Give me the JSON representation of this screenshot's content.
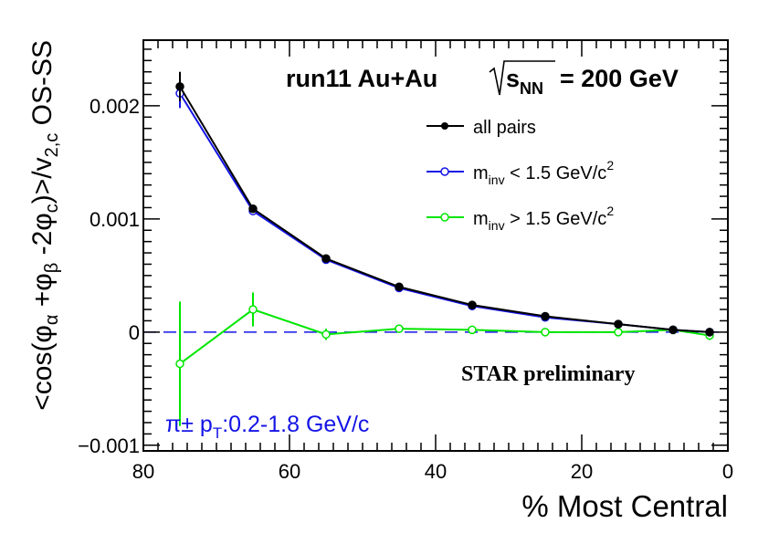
{
  "chart_data": {
    "type": "line",
    "title": "",
    "header": {
      "run": "run11 Au+Au",
      "sqrt": "s",
      "sqrt_sub": "NN",
      "energy": "= 200 GeV"
    },
    "preliminary": "STAR preliminary",
    "kinematics": {
      "main": "π± p",
      "sub": "T",
      "rest": ":0.2-1.8 GeV/c"
    },
    "xlabel": "% Most Central",
    "ylabel": {
      "prefix": "<cos(φ",
      "s1": "α",
      "mid1": " +φ",
      "s2": "β",
      "mid2": " -2φ",
      "s3": "c",
      "mid3": ")>/v",
      "s4": "2,c",
      "suffix": " OS-SS"
    },
    "xlim": [
      80,
      0
    ],
    "ylim": [
      -0.00105,
      0.00258
    ],
    "x_ticks": [
      80,
      60,
      40,
      20,
      0
    ],
    "x_tick_labels": [
      "80",
      "60",
      "40",
      "20",
      "0"
    ],
    "y_ticks": [
      -0.001,
      0,
      0.001,
      0.002
    ],
    "y_tick_labels": [
      "−0.001",
      "0",
      "0.001",
      "0.002"
    ],
    "reference_line": 0,
    "series": [
      {
        "name": "all pairs",
        "legend": {
          "main": "all pairs"
        },
        "color": "#000000",
        "marker": "filled-circle",
        "x": [
          75,
          65,
          55,
          45,
          35,
          25,
          15,
          7.5,
          2.5
        ],
        "y": [
          0.00217,
          0.00109,
          0.00065,
          0.0004,
          0.00024,
          0.00014,
          7e-05,
          2e-05,
          0.0
        ],
        "err": [
          0.00013,
          3e-05,
          2e-05,
          1e-05,
          1e-05,
          1e-05,
          1e-05,
          1e-05,
          1e-05
        ]
      },
      {
        "name": "m_inv < 1.5 GeV/c^2",
        "legend": {
          "pre": "m",
          "sub": "inv",
          "post": " < 1.5 GeV/c",
          "sup": "2"
        },
        "color": "#1414e6",
        "marker": "open-circle",
        "x": [
          75,
          65,
          55,
          45,
          35,
          25,
          15,
          7.5,
          2.5
        ],
        "y": [
          0.00211,
          0.00107,
          0.00064,
          0.00039,
          0.00023,
          0.00013,
          7e-05,
          2e-05,
          0.0
        ],
        "err": [
          0.00013,
          3e-05,
          2e-05,
          1e-05,
          1e-05,
          1e-05,
          1e-05,
          1e-05,
          1e-05
        ]
      },
      {
        "name": "m_inv > 1.5 GeV/c^2",
        "legend": {
          "pre": "m",
          "sub": "inv",
          "post": " > 1.5 GeV/c",
          "sup": "2"
        },
        "color": "#00e600",
        "marker": "open-circle",
        "x": [
          75,
          65,
          55,
          45,
          35,
          25,
          15,
          7.5,
          2.5
        ],
        "y": [
          -0.00028,
          0.0002,
          -2e-05,
          3e-05,
          2e-05,
          0.0,
          0.0,
          2e-05,
          -3e-05
        ],
        "err": [
          0.00055,
          0.00015,
          5e-05,
          2e-05,
          2e-05,
          2e-05,
          2e-05,
          3e-05,
          4e-05
        ]
      }
    ]
  }
}
